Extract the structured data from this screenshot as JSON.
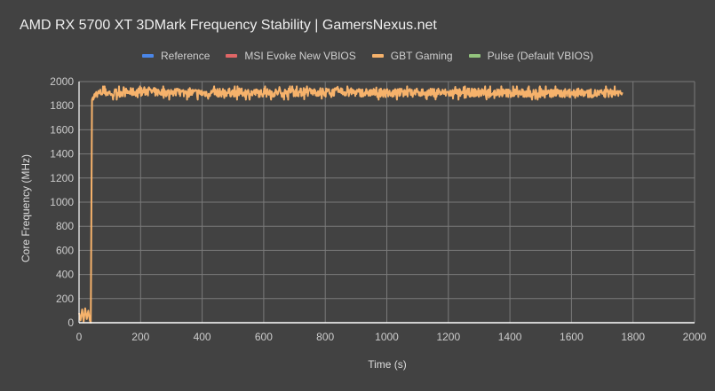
{
  "chart_data": {
    "type": "line",
    "title": "AMD RX 5700 XT 3DMark Frequency Stability | GamersNexus.net",
    "xlabel": "Time (s)",
    "ylabel": "Core Frequency (MHz)",
    "xlim": [
      0,
      2000
    ],
    "ylim": [
      0,
      2000
    ],
    "x_ticks": [
      0,
      200,
      400,
      600,
      800,
      1000,
      1200,
      1400,
      1600,
      1800,
      2000
    ],
    "y_ticks": [
      0,
      200,
      400,
      600,
      800,
      1000,
      1200,
      1400,
      1600,
      1800,
      2000
    ],
    "grid": true,
    "legend_position": "top",
    "legend": [
      "Reference",
      "MSI Evoke New VBIOS",
      "GBT Gaming",
      "Pulse (Default VBIOS)"
    ],
    "series": [
      {
        "name": "Reference",
        "color": "#4a86e8",
        "values": []
      },
      {
        "name": "MSI Evoke New VBIOS",
        "color": "#e06666",
        "values": []
      },
      {
        "name": "Pulse (Default VBIOS)",
        "color": "#93c47d",
        "values": []
      },
      {
        "name": "GBT Gaming",
        "color": "#f6b26b",
        "x": [
          0,
          5,
          10,
          15,
          20,
          25,
          30,
          35,
          38,
          42,
          45,
          50,
          60,
          80,
          100,
          150,
          200,
          300,
          400,
          500,
          600,
          700,
          800,
          900,
          1000,
          1100,
          1200,
          1300,
          1400,
          1500,
          1600,
          1700,
          1765
        ],
        "values": [
          80,
          20,
          110,
          10,
          120,
          30,
          100,
          20,
          0,
          1850,
          1870,
          1880,
          1900,
          1910,
          1905,
          1910,
          1915,
          1910,
          1905,
          1910,
          1905,
          1910,
          1915,
          1910,
          1905,
          1910,
          1905,
          1910,
          1905,
          1900,
          1905,
          1900,
          1910
        ],
        "noise_range_mhz": [
          1850,
          1960
        ]
      }
    ]
  }
}
